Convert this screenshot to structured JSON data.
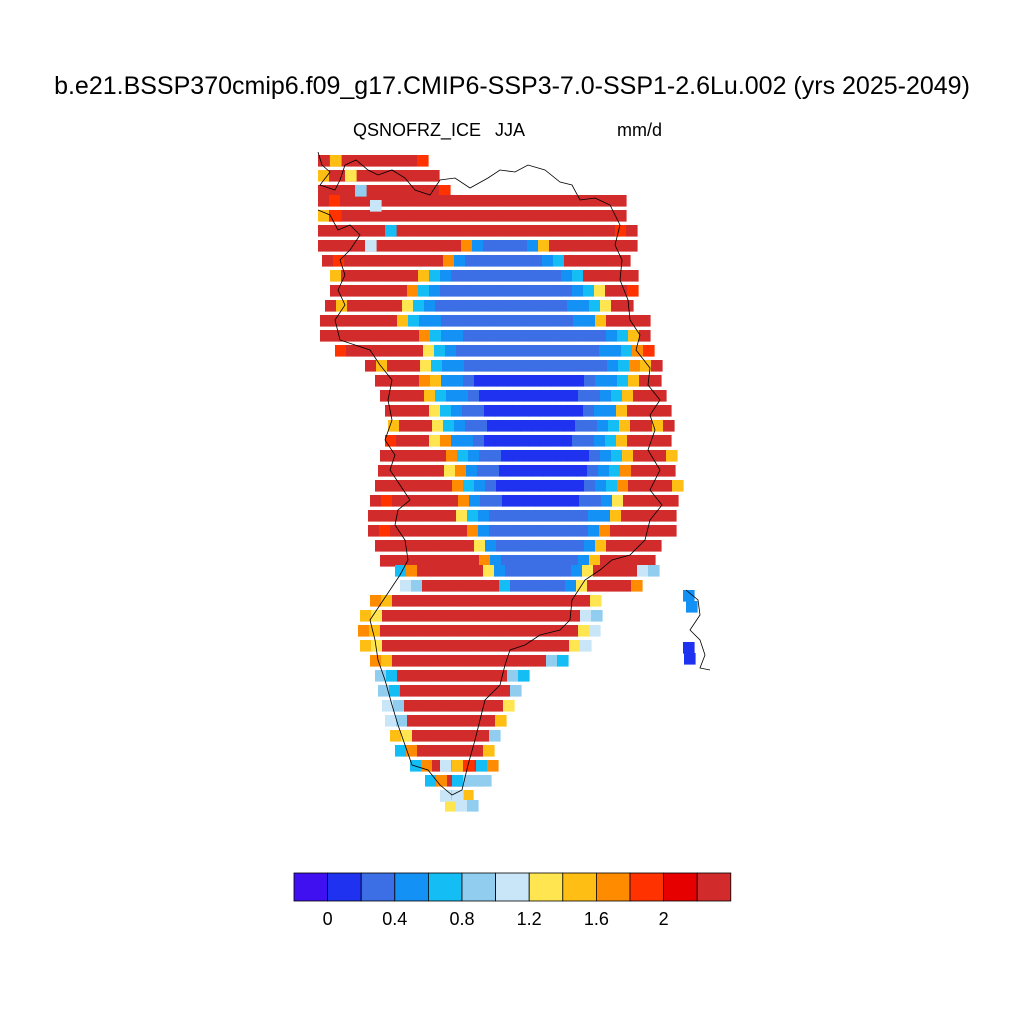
{
  "title": "b.e21.BSSP370cmip6.f09_g17.CMIP6-SSP3-7.0-SSP1-2.6Lu.002 (yrs 2025-2049)",
  "variable": "QSNOFRZ_ICE",
  "season": "JJA",
  "units": "mm/d",
  "colorbar": {
    "colors": [
      "#4010f0",
      "#1e32f0",
      "#3c6ee6",
      "#1491f5",
      "#14bef5",
      "#91cdef",
      "#c8e6f8",
      "#ffe650",
      "#ffbe14",
      "#ff8c00",
      "#ff3200",
      "#e60000",
      "#d22b2b"
    ],
    "labels": [
      "0",
      "0.4",
      "0.8",
      "1.2",
      "1.6",
      "2"
    ]
  },
  "map_data": {
    "type": "gridded-field",
    "region": "Greenland",
    "description_levels": "cell values are colorbar level indices 0-12"
  }
}
